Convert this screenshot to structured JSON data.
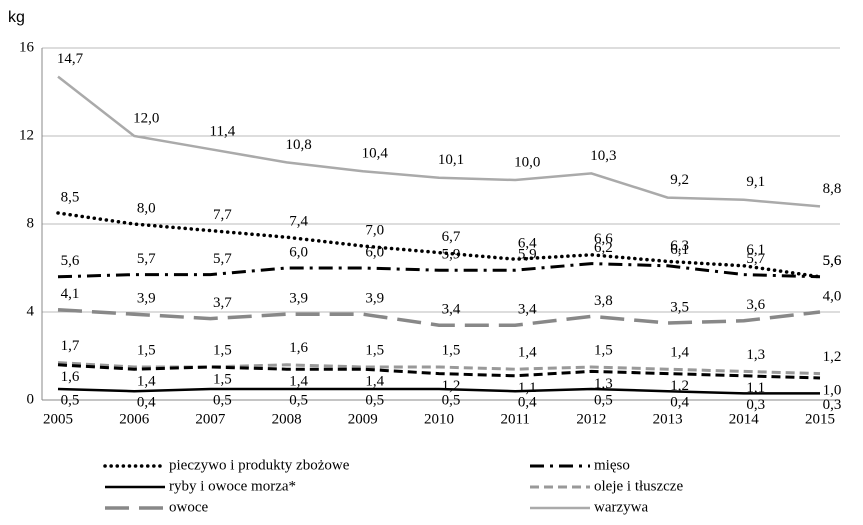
{
  "chart_data": {
    "type": "line",
    "ylabel": "kg",
    "categories": [
      "2005",
      "2006",
      "2007",
      "2008",
      "2009",
      "2010",
      "2011",
      "2012",
      "2013",
      "2014",
      "2015"
    ],
    "ylim": [
      0,
      16
    ],
    "yticks": [
      0,
      4,
      8,
      12,
      16
    ],
    "grid": true,
    "series": [
      {
        "name": "pieczywo i produkty zbożowe",
        "color": "#000000",
        "style": "dotted",
        "values": [
          8.5,
          8.0,
          7.7,
          7.4,
          7.0,
          6.7,
          6.4,
          6.6,
          6.3,
          6.1,
          5.6
        ],
        "value_labels": [
          "8,5",
          "8,0",
          "7,7",
          "7,4",
          "7,0",
          "6,7",
          "6,4",
          "6,6",
          "6,3",
          "6,1",
          "5,6"
        ]
      },
      {
        "name": "mięso",
        "color": "#000000",
        "style": "dashdot",
        "values": [
          5.6,
          5.7,
          5.7,
          6.0,
          6.0,
          5.9,
          5.9,
          6.2,
          6.1,
          5.7,
          5.6
        ],
        "value_labels": [
          "5,6",
          "5,7",
          "5,7",
          "6,0",
          "6,0",
          "5,9",
          "5,9",
          "6,2",
          "6,1",
          "5,7",
          "5,6"
        ]
      },
      {
        "name": "ryby i owoce morza*",
        "color": "#000000",
        "style": "solid",
        "values": [
          0.5,
          0.4,
          0.5,
          0.5,
          0.5,
          0.5,
          0.4,
          0.5,
          0.4,
          0.3,
          0.3
        ],
        "value_labels": [
          "0,5",
          "0,4",
          "0,5",
          "0,5",
          "0,5",
          "0,5",
          "0,4",
          "0,5",
          "0,4",
          "0,3",
          "0,3"
        ]
      },
      {
        "name": "oleje i tłuszcze",
        "color": "#999999",
        "style": "dashed",
        "values": [
          1.7,
          1.5,
          1.5,
          1.6,
          1.5,
          1.5,
          1.4,
          1.5,
          1.4,
          1.3,
          1.2
        ],
        "value_labels": [
          "1,7",
          "1,5",
          "1,5",
          "1,6",
          "1,5",
          "1,5",
          "1,4",
          "1,5",
          "1,4",
          "1,3",
          "1,2"
        ]
      },
      {
        "name": "owoce",
        "color": "#888888",
        "style": "longdash",
        "values": [
          4.1,
          3.9,
          3.7,
          3.9,
          3.9,
          3.4,
          3.4,
          3.8,
          3.5,
          3.6,
          4.0
        ],
        "value_labels": [
          "4,1",
          "3,9",
          "3,7",
          "3,9",
          "3,9",
          "3,4",
          "3,4",
          "3,8",
          "3,5",
          "3,6",
          "4,0"
        ]
      },
      {
        "name": "warzywa",
        "color": "#aaaaaa",
        "style": "solid",
        "values": [
          14.7,
          12.0,
          11.4,
          10.8,
          10.4,
          10.1,
          10.0,
          10.3,
          9.2,
          9.1,
          8.8
        ],
        "value_labels": [
          "14,7",
          "12,0",
          "11,4",
          "10,8",
          "10,4",
          "10,1",
          "10,0",
          "10,3",
          "9,2",
          "9,1",
          "8,8"
        ]
      },
      {
        "color": "#000000",
        "style": "dashed",
        "values": [
          1.6,
          1.4,
          1.5,
          1.4,
          1.4,
          1.2,
          1.1,
          1.3,
          1.2,
          1.1,
          1.0
        ],
        "value_labels": [
          "1,6",
          "1,4",
          "1,5",
          "1,4",
          "1,4",
          "1,2",
          "1,1",
          "1,3",
          "1,2",
          "1,1",
          "1,0"
        ]
      }
    ]
  }
}
